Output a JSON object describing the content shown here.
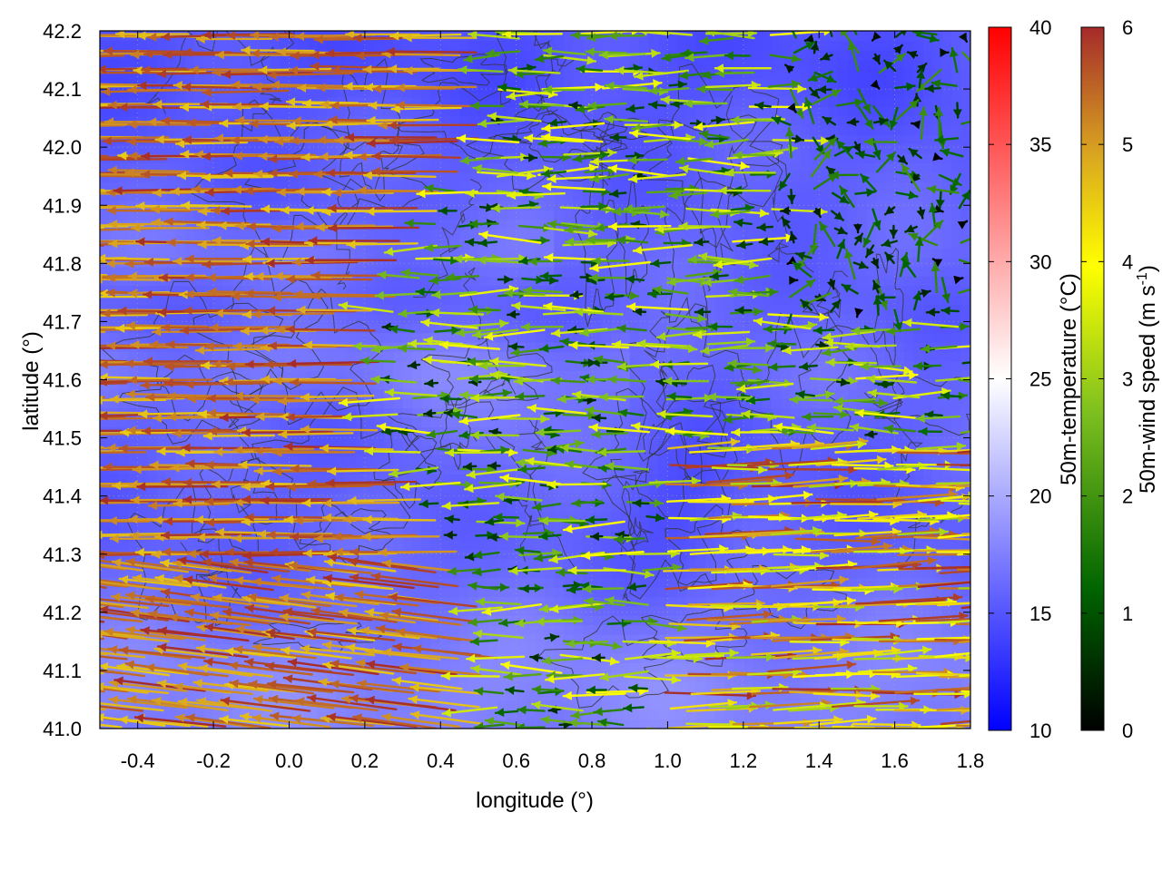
{
  "chart_data": {
    "type": "heatmap",
    "overlay": "wind vector field with temperature contour lines",
    "xlabel": "longitude (°)",
    "ylabel": "latitude (°)",
    "xlim": [
      -0.5,
      1.8
    ],
    "ylim": [
      41.0,
      42.2
    ],
    "xticks": [
      "-0.4",
      "-0.2",
      "0.0",
      "0.2",
      "0.4",
      "0.6",
      "0.8",
      "1.0",
      "1.2",
      "1.4",
      "1.6",
      "1.8"
    ],
    "yticks": [
      "41.0",
      "41.1",
      "41.2",
      "41.3",
      "41.4",
      "41.5",
      "41.6",
      "41.7",
      "41.8",
      "41.9",
      "42.0",
      "42.1",
      "42.2"
    ],
    "grid": true,
    "temperature_colorbar": {
      "label": "50m-temperature (°C)",
      "range": [
        10,
        40
      ],
      "ticks": [
        "10",
        "15",
        "20",
        "25",
        "30",
        "35",
        "40"
      ],
      "colors": [
        "#0000ff",
        "#ffffff",
        "#ff0000"
      ]
    },
    "wind_colorbar": {
      "label_main": "50m-wind speed (m s",
      "label_sup": "-1",
      "label_end": ")",
      "range": [
        0,
        6
      ],
      "ticks": [
        "0",
        "1",
        "2",
        "3",
        "4",
        "5",
        "6"
      ],
      "colors": [
        "#000000",
        "#006400",
        "#7cbf1f",
        "#ffff00",
        "#d9a520",
        "#a52a2a"
      ]
    },
    "temperature_field_range": [
      14,
      21
    ],
    "wind_regions": [
      {
        "region": "west (lon -0.5 to 0.4)",
        "direction": "toward west",
        "speed_range": [
          4.5,
          6
        ]
      },
      {
        "region": "central-north (lon 0.4 to 1.3, lat 41.6 to 42.2)",
        "direction": "mixed, mostly west",
        "speed_range": [
          0.5,
          4
        ]
      },
      {
        "region": "east-south (lon 1.0 to 1.8, lat 41.0 to 41.5)",
        "direction": "toward east",
        "speed_range": [
          3,
          6
        ]
      },
      {
        "region": "northeast (lon 1.3 to 1.8, lat 41.7 to 42.2)",
        "direction": "variable, weak",
        "speed_range": [
          0,
          2
        ]
      }
    ]
  }
}
